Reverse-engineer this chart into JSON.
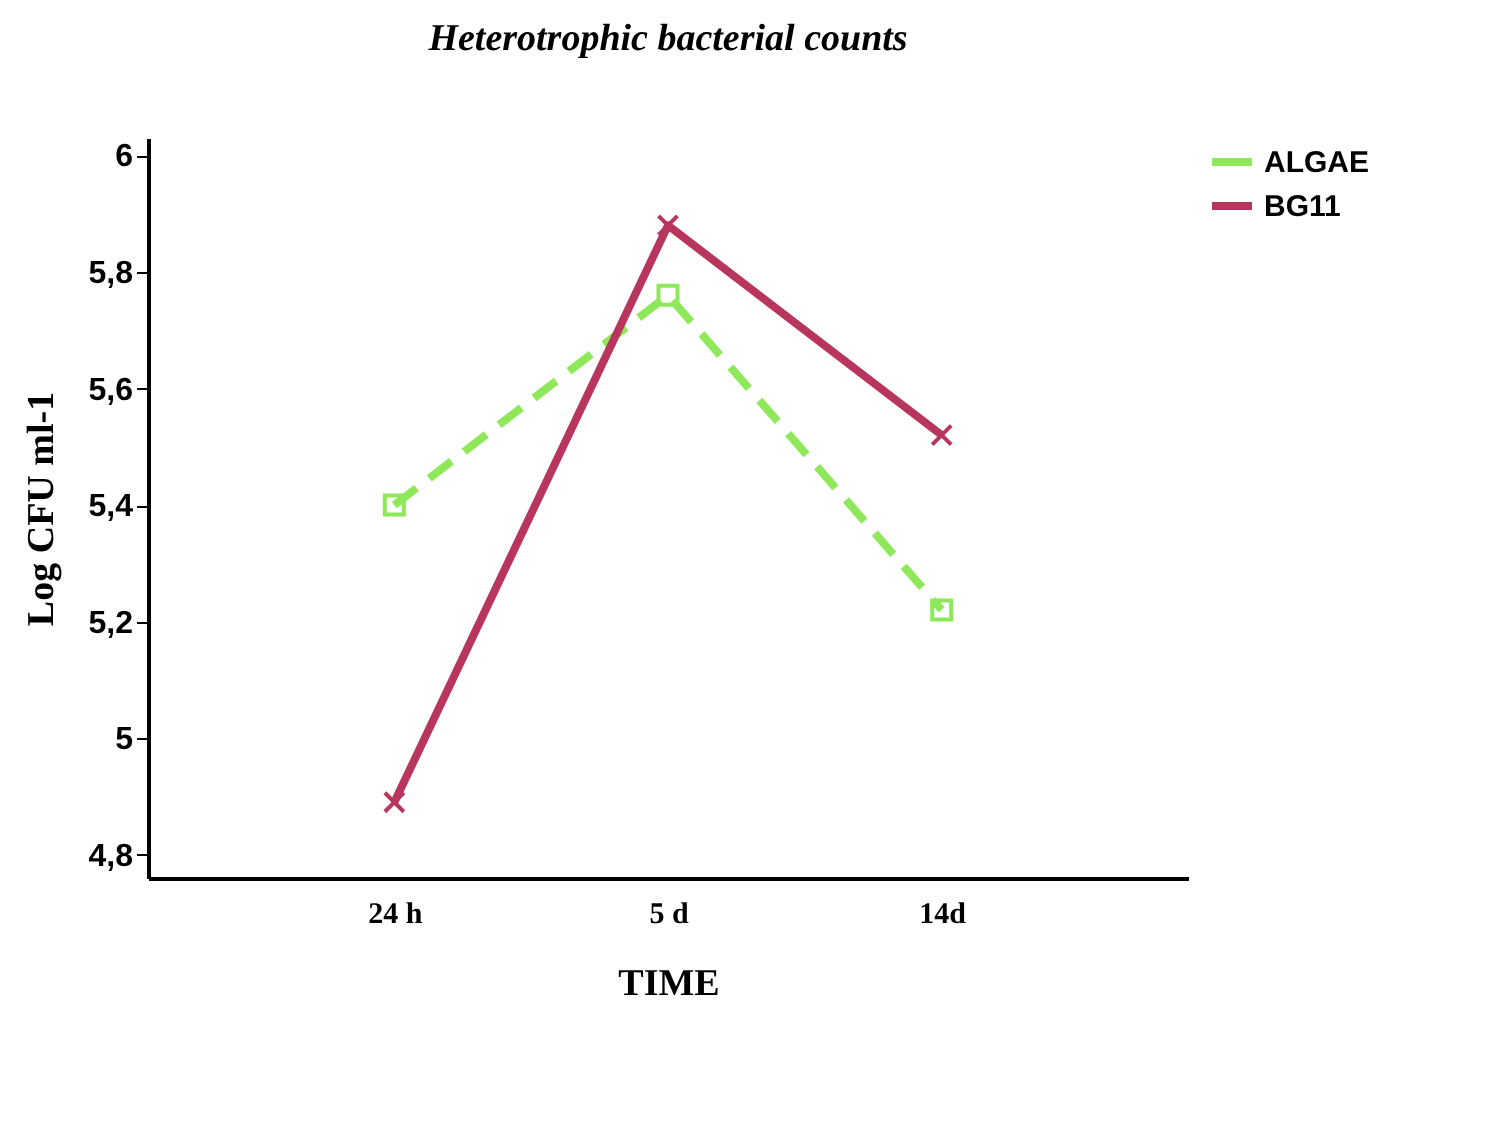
{
  "chart_data": {
    "type": "line",
    "title": "Heterotrophic bacterial counts",
    "xlabel": "TIME",
    "ylabel": "Log CFU ml-1",
    "categories": [
      "24 h",
      "5 d",
      "14d"
    ],
    "series": [
      {
        "name": "ALGAE",
        "color": "#8ee85a",
        "values": [
          5.4,
          5.76,
          5.22
        ],
        "line_style": "dashed",
        "marker": "square"
      },
      {
        "name": "BG11",
        "color": "#b8365e",
        "values": [
          4.89,
          5.88,
          5.52
        ],
        "line_style": "solid",
        "marker": "cross"
      }
    ],
    "ylim": [
      4.76,
      6.03
    ],
    "yticks": [
      {
        "value": 4.8,
        "label": "4,8"
      },
      {
        "value": 5,
        "label": "5"
      },
      {
        "value": 5.2,
        "label": "5,2"
      },
      {
        "value": 5.4,
        "label": "5,4"
      },
      {
        "value": 5.6,
        "label": "5,6"
      },
      {
        "value": 5.8,
        "label": "5,8"
      },
      {
        "value": 6,
        "label": "6"
      }
    ],
    "grid": false,
    "legend": "top right"
  }
}
